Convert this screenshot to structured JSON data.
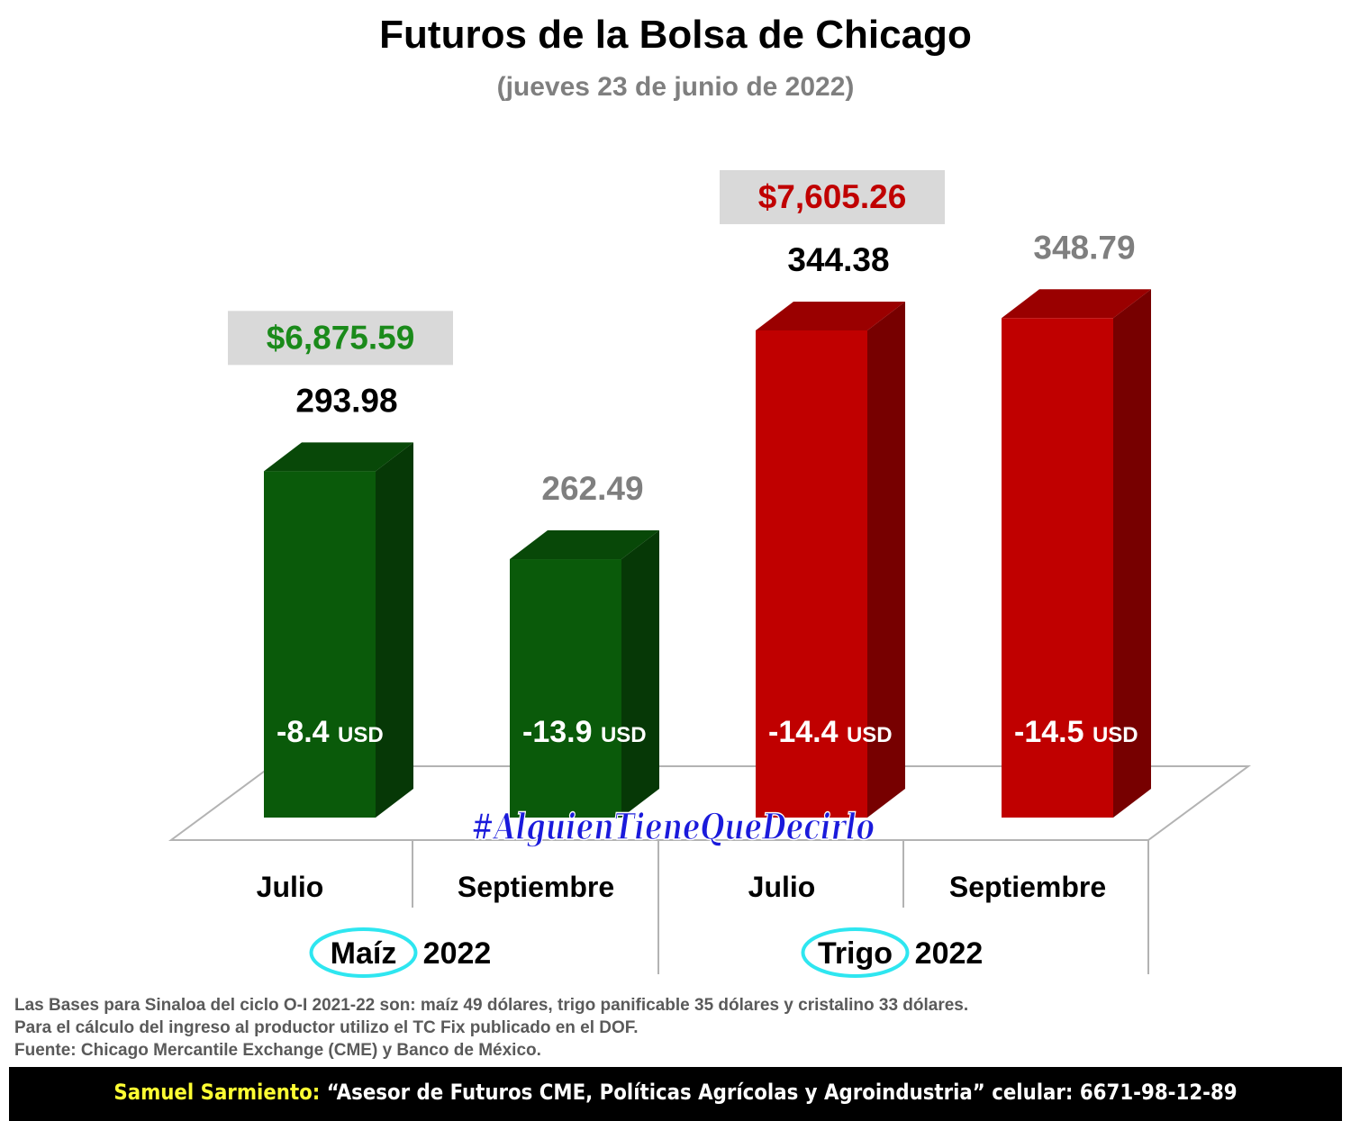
{
  "chart_data": {
    "type": "bar",
    "title": "Futuros de la Bolsa de Chicago",
    "subtitle": "(jueves 23 de junio de 2022)",
    "groups": [
      {
        "label": "Maíz",
        "year": "2022",
        "price_mxn": "$6,875.59",
        "price_color": "#1a8a1a",
        "color": "#0a5a0a",
        "bars": [
          {
            "category": "Julio",
            "value": 293.98,
            "label": "293.98",
            "label_color": "#000000",
            "basis": "-8.4",
            "unit": "USD"
          },
          {
            "category": "Septiembre",
            "value": 262.49,
            "label": "262.49",
            "label_color": "#7f7f7f",
            "basis": "-13.9",
            "unit": "USD"
          }
        ]
      },
      {
        "label": "Trigo",
        "year": "2022",
        "price_mxn": "$7,605.26",
        "price_color": "#c00000",
        "color": "#c00000",
        "bars": [
          {
            "category": "Julio",
            "value": 344.38,
            "label": "344.38",
            "label_color": "#000000",
            "basis": "-14.4",
            "unit": "USD"
          },
          {
            "category": "Septiembre",
            "value": 348.79,
            "label": "348.79",
            "label_color": "#7f7f7f",
            "basis": "-14.5",
            "unit": "USD"
          }
        ]
      }
    ],
    "ylim": [
      170,
      355
    ],
    "watermark": "#AlguienTieneQueDecirlo"
  },
  "notes": [
    "Las Bases para Sinaloa del ciclo O-I 2021-22 son: maíz 49 dólares, trigo panificable 35 dólares y cristalino 33 dólares.",
    "Para el cálculo del ingreso al productor utilizo el TC Fix publicado en el DOF.",
    "Fuente: Chicago Mercantile Exchange (CME) y Banco de México."
  ],
  "footer": {
    "name": "Samuel Sarmiento:",
    "text": " “Asesor de Futuros CME, Políticas Agrícolas y Agroindustria”  celular: 6671-98-12-89"
  }
}
